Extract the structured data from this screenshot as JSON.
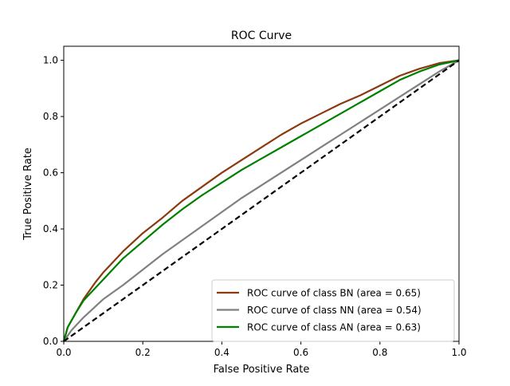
{
  "chart_data": {
    "type": "line",
    "title": "ROC Curve",
    "xlabel": "False Positive Rate",
    "ylabel": "True Positive Rate",
    "xlim": [
      0.0,
      1.0
    ],
    "ylim": [
      0.0,
      1.05
    ],
    "xticks": [
      "0.0",
      "0.2",
      "0.4",
      "0.6",
      "0.8",
      "1.0"
    ],
    "yticks": [
      "0.0",
      "0.2",
      "0.4",
      "0.6",
      "0.8",
      "1.0"
    ],
    "grid": false,
    "legend_position": "lower-right",
    "series": [
      {
        "name": "ROC curve of class BN (area = 0.65)",
        "color": "#8b3a0f",
        "x": [
          0,
          0.01,
          0.03,
          0.05,
          0.08,
          0.1,
          0.15,
          0.2,
          0.25,
          0.3,
          0.35,
          0.4,
          0.45,
          0.5,
          0.55,
          0.6,
          0.65,
          0.7,
          0.75,
          0.8,
          0.85,
          0.9,
          0.95,
          1.0
        ],
        "y": [
          0,
          0.05,
          0.1,
          0.15,
          0.21,
          0.245,
          0.32,
          0.385,
          0.44,
          0.5,
          0.55,
          0.6,
          0.645,
          0.69,
          0.735,
          0.775,
          0.81,
          0.845,
          0.875,
          0.91,
          0.945,
          0.97,
          0.99,
          1.0
        ]
      },
      {
        "name": "ROC curve of class NN (area = 0.54)",
        "color": "#808080",
        "x": [
          0,
          0.02,
          0.05,
          0.1,
          0.15,
          0.2,
          0.25,
          0.3,
          0.35,
          0.4,
          0.45,
          0.5,
          0.55,
          0.6,
          0.65,
          0.7,
          0.75,
          0.8,
          0.85,
          0.9,
          0.95,
          1.0
        ],
        "y": [
          0,
          0.04,
          0.085,
          0.15,
          0.2,
          0.255,
          0.31,
          0.36,
          0.41,
          0.46,
          0.51,
          0.555,
          0.6,
          0.645,
          0.69,
          0.735,
          0.78,
          0.825,
          0.87,
          0.915,
          0.96,
          1.0
        ]
      },
      {
        "name": "ROC curve of class AN (area = 0.63)",
        "color": "#008000",
        "x": [
          0,
          0.01,
          0.03,
          0.05,
          0.08,
          0.1,
          0.15,
          0.2,
          0.25,
          0.3,
          0.35,
          0.4,
          0.45,
          0.5,
          0.55,
          0.6,
          0.65,
          0.7,
          0.75,
          0.8,
          0.85,
          0.9,
          0.95,
          1.0
        ],
        "y": [
          0,
          0.05,
          0.1,
          0.145,
          0.19,
          0.22,
          0.295,
          0.355,
          0.415,
          0.47,
          0.52,
          0.565,
          0.61,
          0.65,
          0.69,
          0.73,
          0.77,
          0.81,
          0.85,
          0.89,
          0.93,
          0.96,
          0.985,
          1.0
        ]
      },
      {
        "name": "",
        "color": "#000000",
        "dashed": true,
        "x": [
          0,
          1
        ],
        "y": [
          0,
          1
        ]
      }
    ]
  }
}
